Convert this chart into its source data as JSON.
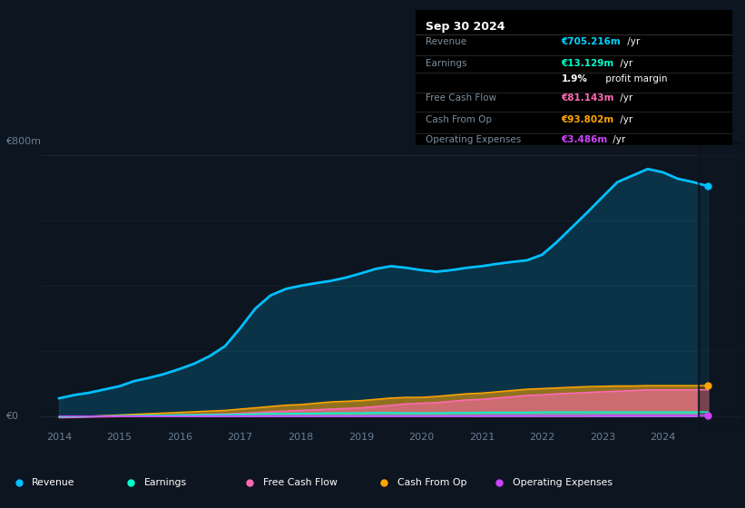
{
  "bg_color": "#0d1520",
  "plot_bg_color": "#0d1520",
  "grid_color": "#1a2535",
  "ylabel_top": "€800m",
  "ylabel_zero": "€0",
  "xlim": [
    2013.7,
    2025.3
  ],
  "ylim": [
    -40,
    840
  ],
  "table_title": "Sep 30 2024",
  "table_rows": [
    {
      "label": "Revenue",
      "value": "€705.216m",
      "value_color": "#00d4ff"
    },
    {
      "label": "Earnings",
      "value": "€13.129m",
      "value_color": "#00ffcc"
    },
    {
      "label": "",
      "value": "1.9% profit margin",
      "value_color": "#ffffff",
      "bold_prefix": "1.9%"
    },
    {
      "label": "Free Cash Flow",
      "value": "€81.143m",
      "value_color": "#ff69b4"
    },
    {
      "label": "Cash From Op",
      "value": "€93.802m",
      "value_color": "#ffa500"
    },
    {
      "label": "Operating Expenses",
      "value": "€3.486m",
      "value_color": "#cc44ff"
    }
  ],
  "years": [
    2014,
    2014.25,
    2014.5,
    2014.75,
    2015,
    2015.25,
    2015.5,
    2015.75,
    2016,
    2016.25,
    2016.5,
    2016.75,
    2017,
    2017.25,
    2017.5,
    2017.75,
    2018,
    2018.25,
    2018.5,
    2018.75,
    2019,
    2019.25,
    2019.5,
    2019.75,
    2020,
    2020.25,
    2020.5,
    2020.75,
    2021,
    2021.25,
    2021.5,
    2021.75,
    2022,
    2022.25,
    2022.5,
    2022.75,
    2023,
    2023.25,
    2023.5,
    2023.75,
    2024,
    2024.25,
    2024.5,
    2024.75
  ],
  "revenue": [
    55,
    65,
    72,
    82,
    92,
    108,
    118,
    130,
    145,
    162,
    185,
    215,
    270,
    330,
    370,
    390,
    400,
    408,
    415,
    425,
    438,
    452,
    460,
    455,
    448,
    443,
    448,
    455,
    460,
    467,
    473,
    478,
    495,
    535,
    580,
    625,
    672,
    718,
    738,
    758,
    748,
    728,
    718,
    705
  ],
  "earnings": [
    -2,
    -1,
    0,
    1,
    2,
    2,
    3,
    3,
    4,
    4,
    5,
    5,
    6,
    7,
    8,
    8,
    9,
    9,
    10,
    10,
    10,
    11,
    11,
    10,
    10,
    10,
    11,
    11,
    12,
    12,
    12,
    12,
    13,
    13,
    13,
    13,
    13,
    13,
    13,
    13,
    13,
    13,
    13,
    13
  ],
  "free_cash_flow": [
    -4,
    -3,
    -2,
    -1,
    0,
    1,
    2,
    3,
    4,
    5,
    6,
    7,
    9,
    11,
    14,
    16,
    18,
    20,
    22,
    24,
    26,
    30,
    34,
    38,
    40,
    42,
    46,
    50,
    52,
    56,
    60,
    64,
    66,
    69,
    71,
    73,
    75,
    77,
    79,
    81,
    81,
    81,
    81,
    81
  ],
  "cash_from_op": [
    -2,
    -1,
    0,
    2,
    4,
    6,
    8,
    10,
    12,
    14,
    16,
    18,
    22,
    26,
    30,
    34,
    36,
    40,
    44,
    46,
    48,
    52,
    56,
    58,
    58,
    61,
    65,
    69,
    71,
    75,
    79,
    83,
    85,
    87,
    89,
    91,
    92,
    93,
    93,
    94,
    94,
    94,
    94,
    94
  ],
  "op_expenses": [
    0.5,
    0.5,
    0.5,
    0.5,
    0.5,
    0.5,
    0.5,
    0.5,
    0.5,
    0.5,
    1,
    1,
    1,
    1,
    1,
    1,
    1,
    1,
    1,
    1,
    1,
    1,
    1,
    1,
    1,
    1,
    1,
    1,
    2,
    2,
    2,
    2,
    2,
    2,
    2,
    2,
    3,
    3,
    3,
    3,
    3,
    3,
    3,
    3
  ],
  "revenue_color": "#00bfff",
  "earnings_color": "#00ffcc",
  "fcf_color": "#ff69b4",
  "cashop_color": "#ffa500",
  "opex_color": "#cc44ff",
  "legend_items": [
    {
      "label": "Revenue",
      "color": "#00bfff"
    },
    {
      "label": "Earnings",
      "color": "#00ffcc"
    },
    {
      "label": "Free Cash Flow",
      "color": "#ff69b4"
    },
    {
      "label": "Cash From Op",
      "color": "#ffa500"
    },
    {
      "label": "Operating Expenses",
      "color": "#cc44ff"
    }
  ],
  "xticks": [
    2014,
    2015,
    2016,
    2017,
    2018,
    2019,
    2020,
    2021,
    2022,
    2023,
    2024
  ],
  "divider_x": 2024.6,
  "divider_color": "#1e3a5f"
}
